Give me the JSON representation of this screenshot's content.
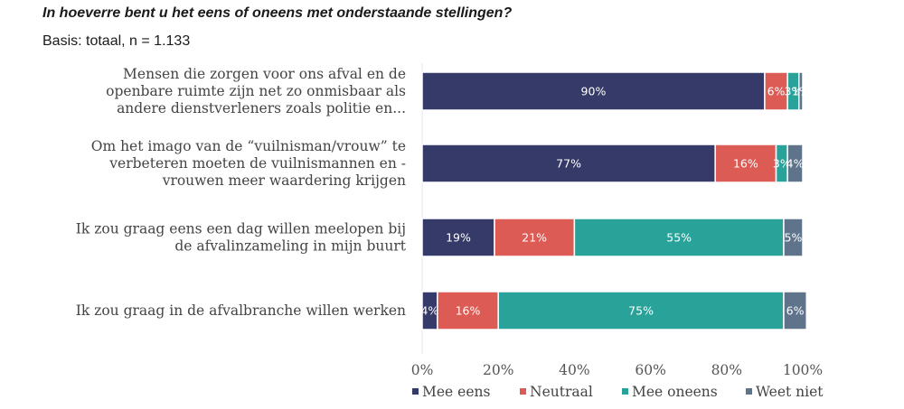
{
  "header": {
    "title": "In hoeverre bent u het eens of oneens met onderstaande stellingen?",
    "subtitle": "Basis: totaal, n = 1.133"
  },
  "chart_data": {
    "type": "bar",
    "orientation": "horizontal",
    "stacked": true,
    "categories": [
      [
        "Mensen die zorgen voor ons afval en de",
        "openbare ruimte zijn net zo onmisbaar als",
        "andere dienstverleners zoals politie en..."
      ],
      [
        "Om het imago van de “vuilnisman/vrouw” te",
        "verbeteren moeten de vuilnismannen en -",
        "vrouwen meer waardering krijgen"
      ],
      [
        "Ik zou graag eens een dag willen meelopen bij",
        "de afvalinzameling in mijn buurt"
      ],
      [
        "Ik zou graag in de afvalbranche willen werken"
      ]
    ],
    "series": [
      {
        "name": "Mee eens",
        "color": "#363a68",
        "values": [
          90,
          77,
          19,
          4
        ],
        "labels": [
          "90%",
          "77%",
          "19%",
          "4%"
        ]
      },
      {
        "name": "Neutraal",
        "color": "#dc5c55",
        "values": [
          6,
          16,
          21,
          16
        ],
        "labels": [
          "6%",
          "16%",
          "21%",
          "16%"
        ]
      },
      {
        "name": "Mee oneens",
        "color": "#29a39a",
        "values": [
          3,
          3,
          55,
          75
        ],
        "labels": [
          "3%",
          "3%",
          "55%",
          "75%"
        ]
      },
      {
        "name": "Weet niet",
        "color": "#5f738a",
        "values": [
          1,
          4,
          5,
          6
        ],
        "labels": [
          "1%",
          "4%",
          "5%",
          "6%"
        ]
      }
    ],
    "xlim": [
      0,
      100
    ],
    "xticks": [
      "0%",
      "20%",
      "40%",
      "60%",
      "80%",
      "100%"
    ],
    "grid": false,
    "legend_position": "bottom"
  }
}
